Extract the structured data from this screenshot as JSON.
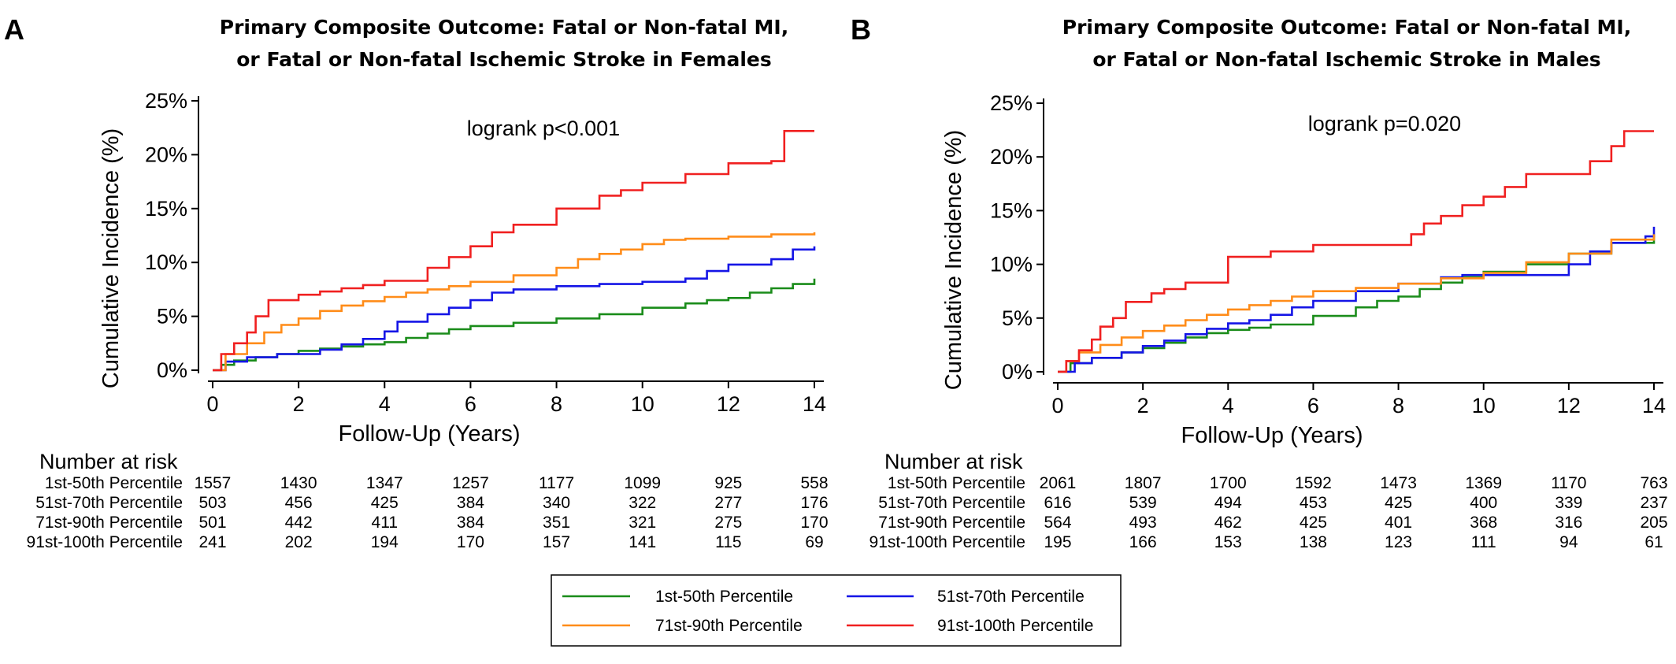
{
  "chart_data": [
    {
      "panel": "A",
      "type": "line",
      "step": true,
      "title_lines": [
        "Primary Composite Outcome: Fatal or Non-fatal MI,",
        "or Fatal or Non-fatal Ischemic Stroke in Females"
      ],
      "xlabel": "Follow-Up (Years)",
      "ylabel": "Cumulative Incidence (%)",
      "xlim": [
        0,
        14
      ],
      "ylim": [
        0,
        25
      ],
      "xticks": [
        0,
        2,
        4,
        6,
        8,
        10,
        12,
        14
      ],
      "yticks": [
        0,
        5,
        10,
        15,
        20,
        25
      ],
      "ytick_labels": [
        "0%",
        "5%",
        "10%",
        "15%",
        "20%",
        "25%"
      ],
      "annotation": "logrank p<0.001",
      "series": [
        {
          "name": "1st-50th Percentile",
          "color": "#1a8c1a",
          "x": [
            0,
            0.2,
            0.5,
            1,
            1.5,
            2,
            2.5,
            3,
            3.5,
            4,
            4.5,
            5,
            5.5,
            6,
            7,
            8,
            9,
            10,
            11,
            11.5,
            12,
            12.5,
            13,
            13.5,
            14
          ],
          "y": [
            0,
            0.5,
            0.9,
            1.2,
            1.5,
            1.8,
            2.0,
            2.2,
            2.4,
            2.6,
            3.0,
            3.4,
            3.8,
            4.1,
            4.4,
            4.8,
            5.2,
            5.8,
            6.2,
            6.5,
            6.7,
            7.2,
            7.6,
            8.0,
            8.5
          ]
        },
        {
          "name": "51st-70th Percentile",
          "color": "#1515e6",
          "x": [
            0,
            0.3,
            0.8,
            1.5,
            2.5,
            3,
            3.5,
            4,
            4.3,
            5,
            5.5,
            6,
            6.5,
            7,
            8,
            9,
            10,
            11,
            11.5,
            12,
            13,
            13.5,
            14
          ],
          "y": [
            0,
            0.8,
            1.2,
            1.5,
            1.9,
            2.4,
            2.9,
            3.6,
            4.5,
            5.2,
            5.8,
            6.5,
            7.2,
            7.5,
            7.8,
            8.0,
            8.2,
            8.5,
            9.2,
            9.8,
            10.3,
            11.2,
            11.5
          ]
        },
        {
          "name": "71st-90th Percentile",
          "color": "#ff8c19",
          "x": [
            0,
            0.3,
            0.8,
            1.2,
            1.6,
            2,
            2.5,
            3,
            3.5,
            4,
            4.5,
            5,
            5.5,
            6,
            7,
            8,
            8.5,
            9,
            9.5,
            10,
            10.5,
            11,
            12,
            13,
            14
          ],
          "y": [
            0,
            1.5,
            2.5,
            3.5,
            4.2,
            4.8,
            5.5,
            6.0,
            6.4,
            6.8,
            7.2,
            7.5,
            7.8,
            8.2,
            8.8,
            9.5,
            10.3,
            10.8,
            11.2,
            11.7,
            12.1,
            12.2,
            12.4,
            12.6,
            12.8
          ]
        },
        {
          "name": "91st-100th Percentile",
          "color": "#f02020",
          "x": [
            0,
            0.2,
            0.5,
            0.8,
            1.0,
            1.3,
            2,
            2.5,
            3,
            3.5,
            4,
            5,
            5.5,
            6,
            6.5,
            7,
            8,
            9,
            9.5,
            10,
            11,
            12,
            13,
            13.3,
            14
          ],
          "y": [
            0,
            1.5,
            2.5,
            3.5,
            5.0,
            6.5,
            7.0,
            7.3,
            7.6,
            7.9,
            8.3,
            9.5,
            10.5,
            11.5,
            12.8,
            13.5,
            15.0,
            16.2,
            16.7,
            17.4,
            18.2,
            19.2,
            19.4,
            22.2,
            22.2
          ]
        }
      ],
      "number_at_risk": {
        "heading": "Number at risk",
        "rows": [
          {
            "label": "1st-50th Percentile",
            "values": [
              "1557",
              "1430",
              "1347",
              "1257",
              "1177",
              "1099",
              "925",
              "558"
            ]
          },
          {
            "label": "51st-70th Percentile",
            "values": [
              "503",
              "456",
              "425",
              "384",
              "340",
              "322",
              "277",
              "176"
            ]
          },
          {
            "label": "71st-90th Percentile",
            "values": [
              "501",
              "442",
              "411",
              "384",
              "351",
              "321",
              "275",
              "170"
            ]
          },
          {
            "label": "91st-100th Percentile",
            "values": [
              "241",
              "202",
              "194",
              "170",
              "157",
              "141",
              "115",
              "69"
            ]
          }
        ]
      }
    },
    {
      "panel": "B",
      "type": "line",
      "step": true,
      "title_lines": [
        "Primary Composite Outcome: Fatal or Non-fatal MI,",
        "or Fatal or Non-fatal Ischemic Stroke in Males"
      ],
      "xlabel": "Follow-Up (Years)",
      "ylabel": "Cumulative Incidence (%)",
      "xlim": [
        0,
        14
      ],
      "ylim": [
        0,
        25
      ],
      "xticks": [
        0,
        2,
        4,
        6,
        8,
        10,
        12,
        14
      ],
      "yticks": [
        0,
        5,
        10,
        15,
        20,
        25
      ],
      "ytick_labels": [
        "0%",
        "5%",
        "10%",
        "15%",
        "20%",
        "25%"
      ],
      "annotation": "logrank p=0.020",
      "series": [
        {
          "name": "1st-50th Percentile",
          "color": "#1a8c1a",
          "x": [
            0,
            0.3,
            0.8,
            1.5,
            2,
            2.5,
            3,
            3.5,
            4,
            4.5,
            5,
            6,
            7,
            7.5,
            8,
            8.5,
            9,
            9.5,
            10,
            11,
            12,
            13,
            14
          ],
          "y": [
            0,
            0.8,
            1.3,
            1.8,
            2.2,
            2.7,
            3.2,
            3.6,
            3.9,
            4.1,
            4.4,
            5.2,
            6.0,
            6.6,
            7.0,
            7.7,
            8.3,
            8.8,
            9.3,
            10.0,
            11.0,
            12.0,
            12.8
          ]
        },
        {
          "name": "51st-70th Percentile",
          "color": "#1515e6",
          "x": [
            0,
            0.4,
            0.8,
            1.5,
            2,
            2.5,
            3,
            3.5,
            4,
            4.5,
            5,
            5.5,
            6,
            7,
            8,
            9,
            9.5,
            10,
            11,
            12,
            12.5,
            13,
            13.8,
            14
          ],
          "y": [
            0,
            0.8,
            1.3,
            1.8,
            2.4,
            2.9,
            3.5,
            4.0,
            4.5,
            4.8,
            5.3,
            6.0,
            6.6,
            7.5,
            8.2,
            8.8,
            9.0,
            9.0,
            9.0,
            10.0,
            11.2,
            12.0,
            12.6,
            13.5
          ]
        },
        {
          "name": "71st-90th Percentile",
          "color": "#ff8c19",
          "x": [
            0,
            0.2,
            0.5,
            1,
            1.5,
            2,
            2.5,
            3,
            3.5,
            4,
            4.5,
            5,
            5.5,
            6,
            7,
            8,
            9,
            10,
            11,
            12,
            13,
            14
          ],
          "y": [
            0,
            1.0,
            1.8,
            2.5,
            3.2,
            3.8,
            4.3,
            4.8,
            5.3,
            5.8,
            6.2,
            6.6,
            7.0,
            7.5,
            7.8,
            8.2,
            8.7,
            9.2,
            10.2,
            11.0,
            12.3,
            12.8
          ]
        },
        {
          "name": "91st-100th Percentile",
          "color": "#f02020",
          "x": [
            0,
            0.2,
            0.5,
            0.8,
            1.0,
            1.3,
            1.6,
            2.2,
            2.5,
            3,
            4,
            5,
            6,
            7,
            8,
            8.3,
            8.6,
            9,
            9.5,
            10,
            10.5,
            11,
            12,
            12.5,
            13,
            13.3,
            14
          ],
          "y": [
            0,
            1.0,
            2.0,
            3.0,
            4.2,
            5.0,
            6.5,
            7.3,
            7.7,
            8.3,
            10.7,
            11.2,
            11.8,
            11.8,
            11.8,
            12.8,
            13.8,
            14.5,
            15.5,
            16.3,
            17.2,
            18.4,
            18.4,
            19.6,
            21.0,
            22.4,
            22.4
          ]
        }
      ],
      "number_at_risk": {
        "heading": "Number at risk",
        "rows": [
          {
            "label": "1st-50th Percentile",
            "values": [
              "2061",
              "1807",
              "1700",
              "1592",
              "1473",
              "1369",
              "1170",
              "763"
            ]
          },
          {
            "label": "51st-70th Percentile",
            "values": [
              "616",
              "539",
              "494",
              "453",
              "425",
              "400",
              "339",
              "237"
            ]
          },
          {
            "label": "71st-90th Percentile",
            "values": [
              "564",
              "493",
              "462",
              "425",
              "401",
              "368",
              "316",
              "205"
            ]
          },
          {
            "label": "91st-100th Percentile",
            "values": [
              "195",
              "166",
              "153",
              "138",
              "123",
              "111",
              "94",
              "61"
            ]
          }
        ]
      }
    }
  ],
  "legend": {
    "items": [
      {
        "label": "1st-50th Percentile",
        "color": "#1a8c1a"
      },
      {
        "label": "51st-70th Percentile",
        "color": "#1515e6"
      },
      {
        "label": "71st-90th Percentile",
        "color": "#ff8c19"
      },
      {
        "label": "91st-100th Percentile",
        "color": "#f02020"
      }
    ]
  }
}
